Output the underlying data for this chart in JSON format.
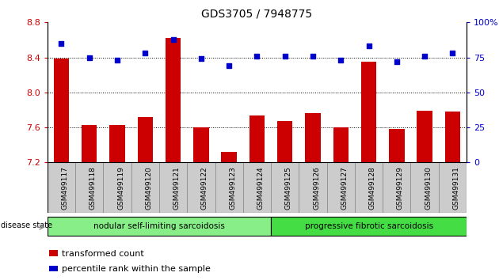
{
  "title": "GDS3705 / 7948775",
  "samples": [
    "GSM499117",
    "GSM499118",
    "GSM499119",
    "GSM499120",
    "GSM499121",
    "GSM499122",
    "GSM499123",
    "GSM499124",
    "GSM499125",
    "GSM499126",
    "GSM499127",
    "GSM499128",
    "GSM499129",
    "GSM499130",
    "GSM499131"
  ],
  "bar_values": [
    8.39,
    7.63,
    7.63,
    7.72,
    8.62,
    7.6,
    7.32,
    7.74,
    7.67,
    7.76,
    7.6,
    8.35,
    7.58,
    7.79,
    7.78
  ],
  "percentile_values": [
    85,
    75,
    73,
    78,
    88,
    74,
    69,
    76,
    76,
    76,
    73,
    83,
    72,
    76,
    78
  ],
  "bar_color": "#cc0000",
  "dot_color": "#0000cc",
  "ylim_left": [
    7.2,
    8.8
  ],
  "ylim_right": [
    0,
    100
  ],
  "yticks_left": [
    7.2,
    7.6,
    8.0,
    8.4,
    8.8
  ],
  "yticks_right": [
    0,
    25,
    50,
    75,
    100
  ],
  "grid_values": [
    7.6,
    8.0,
    8.4
  ],
  "group1_label": "nodular self-limiting sarcoidosis",
  "group2_label": "progressive fibrotic sarcoidosis",
  "group1_count": 8,
  "disease_state_label": "disease state",
  "legend_bar_label": "transformed count",
  "legend_dot_label": "percentile rank within the sample",
  "tick_label_color_left": "#cc0000",
  "tick_label_color_right": "#0000cc",
  "bg_xtick": "#cccccc",
  "bg_group1": "#88ee88",
  "bg_group2": "#44dd44",
  "figure_width": 6.3,
  "figure_height": 3.54,
  "dpi": 100
}
